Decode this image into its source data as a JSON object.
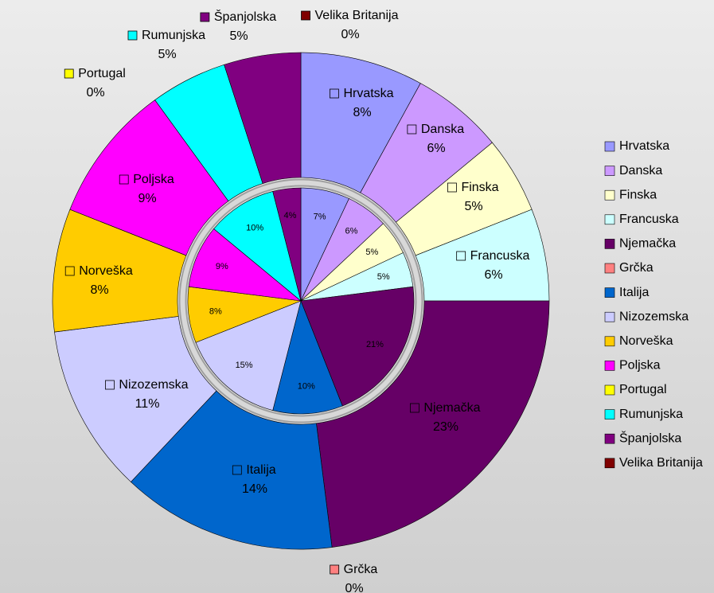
{
  "chart_data": {
    "type": "doughnut",
    "categories": [
      "Hrvatska",
      "Danska",
      "Finska",
      "Francuska",
      "Njemačka",
      "Grčka",
      "Italija",
      "Nizozemska",
      "Norveška",
      "Poljska",
      "Portugal",
      "Rumunjska",
      "Španjolska",
      "Velika Britanija"
    ],
    "series": [
      {
        "colors": [
          "#9999ff",
          "#cc99ff",
          "#ffffcc",
          "#ccffff",
          "#660066",
          "#ff8080",
          "#0066cc",
          "#ccccff",
          "#ffcc00",
          "#ff00ff",
          "#ffff00",
          "#00ffff",
          "#800080",
          "#800000"
        ],
        "values": [
          8,
          6,
          5,
          6,
          23,
          0,
          14,
          11,
          8,
          9,
          0,
          5,
          5,
          0
        ],
        "value_labels": [
          "8%",
          "6%",
          "5%",
          "6%",
          "23%",
          "0%",
          "14%",
          "11%",
          "8%",
          "9%",
          "0%",
          "5%",
          "5%",
          "0%"
        ]
      },
      {
        "colors": [
          "#9999ff",
          "#cc99ff",
          "#ffffcc",
          "#ccffff",
          "#660066",
          "#ff8080",
          "#0066cc",
          "#ccccff",
          "#ffcc00",
          "#ff00ff",
          "#ffff00",
          "#00ffff",
          "#800080",
          "#800000"
        ],
        "values": [
          7,
          6,
          5,
          5,
          21,
          0,
          10,
          15,
          8,
          9,
          0,
          10,
          4,
          0
        ],
        "value_labels": [
          "7%",
          "6%",
          "5%",
          "5%",
          "21%",
          null,
          "10%",
          "15%",
          "8%",
          "9%",
          null,
          "10%",
          "4%",
          null
        ]
      }
    ],
    "legend": "right"
  }
}
